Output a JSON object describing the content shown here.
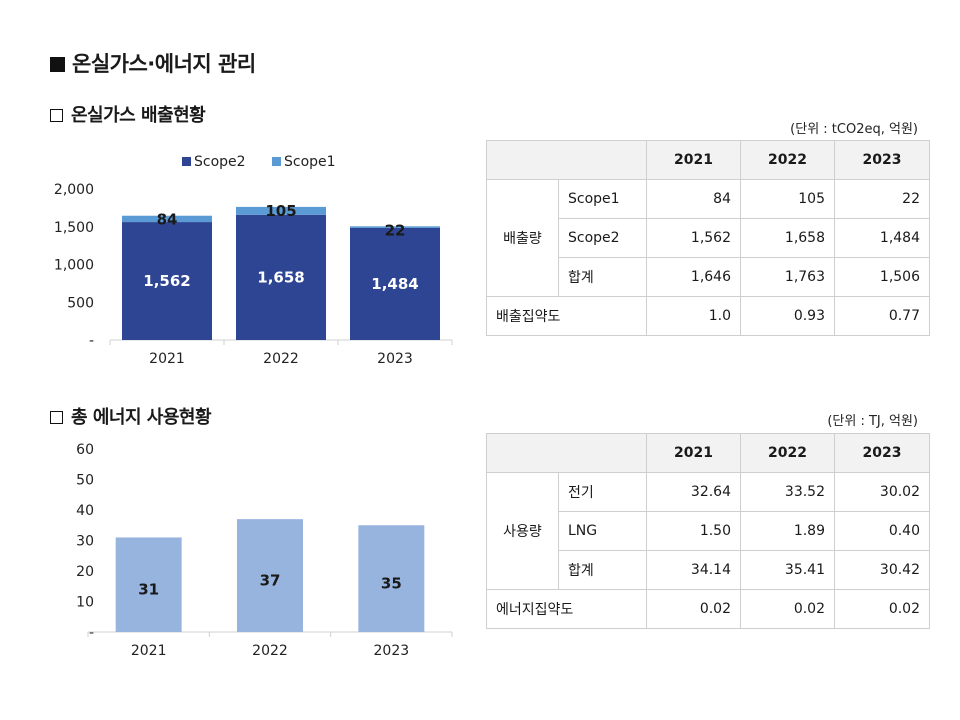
{
  "main_title": "온실가스·에너지 관리",
  "emissions": {
    "title": "온실가스 배출현황",
    "unit": "(단위 : tCO2eq, 억원)",
    "table": {
      "years": [
        "2021",
        "2022",
        "2023"
      ],
      "group_label": "배출량",
      "rows": [
        {
          "label": "Scope1",
          "values": [
            "84",
            "105",
            "22"
          ]
        },
        {
          "label": "Scope2",
          "values": [
            "1,562",
            "1,658",
            "1,484"
          ]
        },
        {
          "label": "합계",
          "values": [
            "1,646",
            "1,763",
            "1,506"
          ]
        }
      ],
      "intensity": {
        "label": "배출집약도",
        "values": [
          "1.0",
          "0.93",
          "0.77"
        ]
      }
    }
  },
  "energy": {
    "title": "총 에너지 사용현황",
    "unit": "(단위 : TJ, 억원)",
    "table": {
      "years": [
        "2021",
        "2022",
        "2023"
      ],
      "group_label": "사용량",
      "rows": [
        {
          "label": "전기",
          "values": [
            "32.64",
            "33.52",
            "30.02"
          ]
        },
        {
          "label": "LNG",
          "values": [
            "1.50",
            "1.89",
            "0.40"
          ]
        },
        {
          "label": "합계",
          "values": [
            "34.14",
            "35.41",
            "30.42"
          ]
        }
      ],
      "intensity": {
        "label": "에너지집약도",
        "values": [
          "0.02",
          "0.02",
          "0.02"
        ]
      }
    }
  },
  "chart_data": [
    {
      "type": "bar",
      "stacked": true,
      "categories": [
        "2021",
        "2022",
        "2023"
      ],
      "series": [
        {
          "name": "Scope2",
          "values": [
            1562,
            1658,
            1484
          ],
          "color": "#2e4593",
          "labels": [
            "1,562",
            "1,658",
            "1,484"
          ]
        },
        {
          "name": "Scope1",
          "values": [
            84,
            105,
            22
          ],
          "color": "#5b9bd5",
          "labels": [
            "84",
            "105",
            "22"
          ]
        }
      ],
      "ylim": [
        0,
        2000
      ],
      "yticks": [
        0,
        500,
        1000,
        1500,
        2000
      ],
      "ytick_labels": [
        "-",
        "500",
        "1,000",
        "1,500",
        "2,000"
      ],
      "legend": "top",
      "grid": false
    },
    {
      "type": "bar",
      "categories": [
        "2021",
        "2022",
        "2023"
      ],
      "series": [
        {
          "values": [
            31,
            37,
            35
          ],
          "color": "#97b4df",
          "labels": [
            "31",
            "37",
            "35"
          ]
        }
      ],
      "ylim": [
        0,
        60
      ],
      "yticks": [
        0,
        10,
        20,
        30,
        40,
        50,
        60
      ],
      "ytick_labels": [
        "-",
        "10",
        "20",
        "30",
        "40",
        "50",
        "60"
      ],
      "grid": false
    }
  ]
}
